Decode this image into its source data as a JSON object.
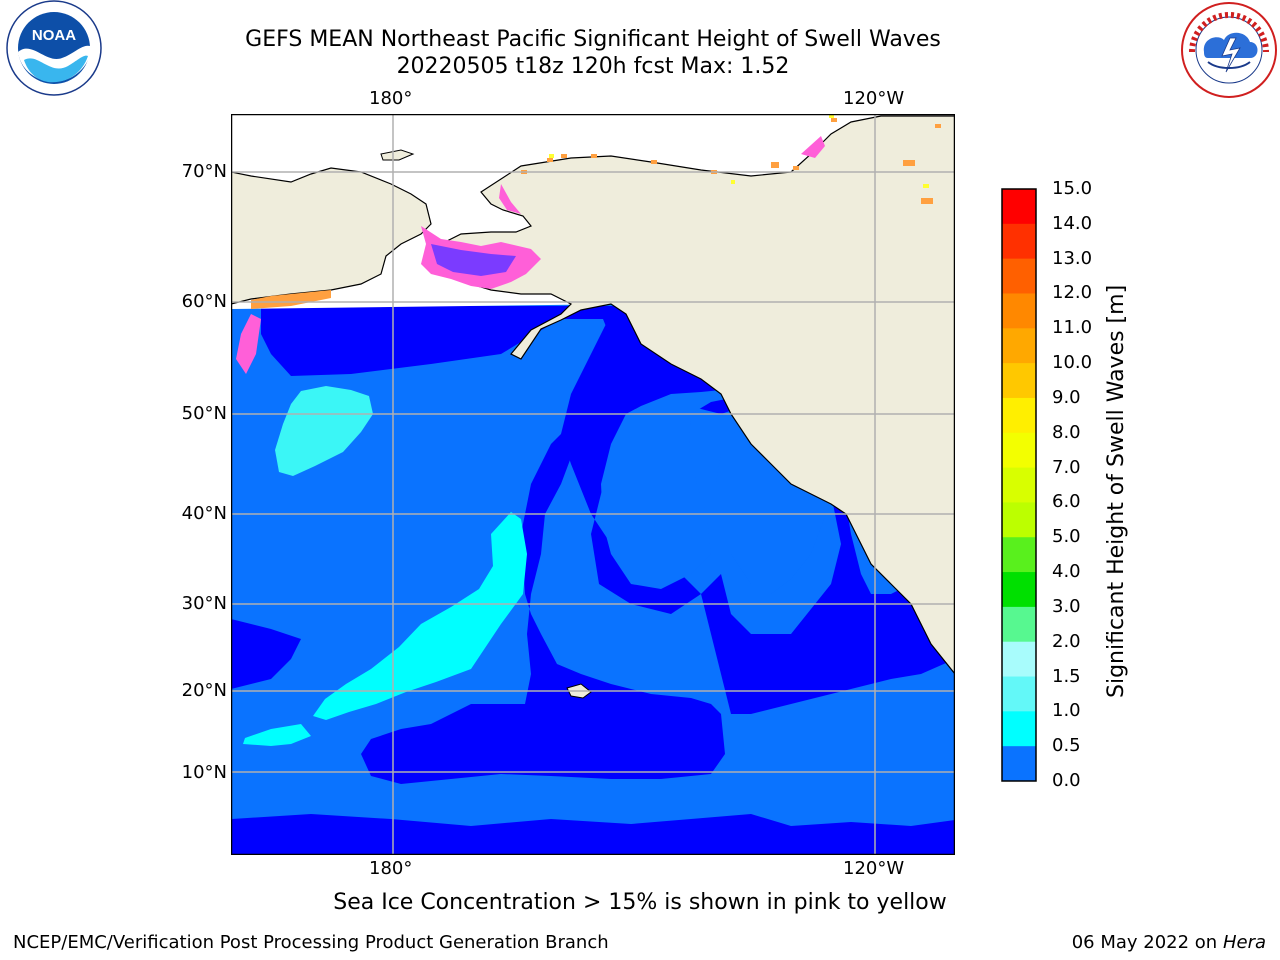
{
  "header": {
    "title_line1": "GEFS MEAN Northeast Pacific Significant Height of Swell Waves",
    "title_line2": "20220505 t18z 120h fcst   Max: 1.52"
  },
  "logos": {
    "left": {
      "name": "noaa-logo",
      "text": "NOAA"
    },
    "right": {
      "name": "nws-logo",
      "text": "NATIONAL WEATHER SERVICE"
    }
  },
  "map": {
    "lon_labels_top": [
      "180°",
      "120°W"
    ],
    "lon_labels_bottom": [
      "180°",
      "120°W"
    ],
    "lat_labels": [
      "70°N",
      "60°N",
      "50°N",
      "40°N",
      "30°N",
      "20°N",
      "10°N"
    ],
    "colors": {
      "land": "#efeddc",
      "ice_free_white": "#ffffff",
      "swell_0_0_5": "#0000ff",
      "swell_0_5_1_0": "#0a73ff",
      "swell_1_0_1_5": "#00ffff",
      "swell_1_5_2_0": "#3bf6f6",
      "ice_pink": "#ff5fd8",
      "ice_orange": "#ffa040",
      "ice_yellow": "#ffff30",
      "grid": "#b0b0b0"
    }
  },
  "colorbar": {
    "title": "Significant Height of Swell Waves [m]",
    "ticks": [
      "15.0",
      "14.0",
      "13.0",
      "12.0",
      "11.0",
      "10.0",
      "9.0",
      "8.0",
      "7.0",
      "6.0",
      "5.0",
      "4.0",
      "3.0",
      "2.0",
      "1.5",
      "1.0",
      "0.5",
      "0.0"
    ],
    "colors_top_to_bottom": [
      "#ff0000",
      "#ff3000",
      "#ff6000",
      "#ff8800",
      "#ffa800",
      "#ffc800",
      "#ffef00",
      "#f3ff00",
      "#d8ff00",
      "#bcff00",
      "#59f01d",
      "#00e000",
      "#57f890",
      "#a8fcfc",
      "#63f8f8",
      "#00ffff",
      "#0a73ff",
      "#0000ff"
    ]
  },
  "footer": {
    "note": "Sea Ice Concentration > 15% is shown in pink to yellow",
    "credit": "NCEP/EMC/Verification Post Processing Product Generation Branch",
    "date": "06 May 2022 on",
    "machine": "Hera"
  }
}
